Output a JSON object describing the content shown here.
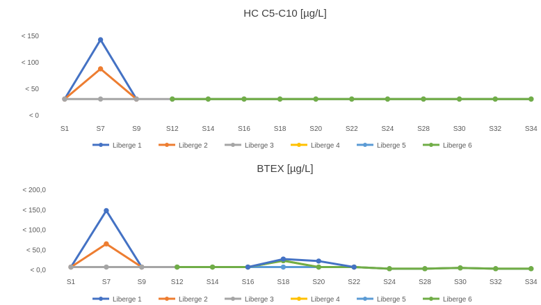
{
  "chart_data": [
    {
      "type": "line",
      "title": "HC C5-C10 [µg/L]",
      "xlabel": "",
      "ylabel": "",
      "categories": [
        "S1",
        "S7",
        "S9",
        "S12",
        "S14",
        "S16",
        "S18",
        "S20",
        "S22",
        "S24",
        "S28",
        "S30",
        "S32",
        "S34"
      ],
      "y_ticks": [
        "< 0",
        "< 50",
        "< 100",
        "< 150"
      ],
      "ylim": [
        0,
        150
      ],
      "grid": false,
      "legend_position": "bottom",
      "series": [
        {
          "name": "Liberge 1",
          "color": "#4472C4",
          "values": [
            30,
            142,
            30,
            null,
            null,
            null,
            null,
            null,
            null,
            null,
            null,
            null,
            null,
            null
          ]
        },
        {
          "name": "Liberge 2",
          "color": "#ED7D31",
          "values": [
            30,
            87,
            30,
            null,
            null,
            null,
            null,
            null,
            null,
            null,
            null,
            null,
            null,
            null
          ]
        },
        {
          "name": "Liberge 3",
          "color": "#A5A5A5",
          "values": [
            30,
            30,
            30,
            30,
            null,
            null,
            null,
            null,
            null,
            null,
            null,
            null,
            null,
            null
          ]
        },
        {
          "name": "Liberge 4",
          "color": "#FFC000",
          "values": [
            null,
            null,
            null,
            30,
            30,
            30,
            30,
            30,
            30,
            30,
            30,
            30,
            30,
            30
          ]
        },
        {
          "name": "Liberge 5",
          "color": "#5B9BD5",
          "values": [
            null,
            null,
            null,
            30,
            30,
            30,
            30,
            30,
            30,
            30,
            30,
            30,
            30,
            30
          ]
        },
        {
          "name": "Liberge 6",
          "color": "#70AD47",
          "values": [
            null,
            null,
            null,
            30,
            30,
            30,
            30,
            30,
            30,
            30,
            30,
            30,
            30,
            30
          ]
        }
      ]
    },
    {
      "type": "line",
      "title": "BTEX [µg/L]",
      "xlabel": "",
      "ylabel": "",
      "categories": [
        "S1",
        "S7",
        "S9",
        "S12",
        "S14",
        "S16",
        "S18",
        "S20",
        "S22",
        "S24",
        "S28",
        "S30",
        "S32",
        "S34"
      ],
      "y_ticks": [
        "< 0,0",
        "< 50,0",
        "< 100,0",
        "< 150,0",
        "< 200,0"
      ],
      "ylim": [
        0,
        200
      ],
      "grid": false,
      "legend_position": "bottom",
      "series": [
        {
          "name": "Liberge 1",
          "color": "#4472C4",
          "values": [
            6,
            147,
            6,
            null,
            null,
            null,
            null,
            null,
            null,
            null,
            null,
            null,
            null,
            null
          ]
        },
        {
          "name": "Liberge 2",
          "color": "#ED7D31",
          "values": [
            6,
            64,
            6,
            null,
            null,
            null,
            null,
            null,
            null,
            null,
            null,
            null,
            null,
            null
          ]
        },
        {
          "name": "Liberge 3",
          "color": "#A5A5A5",
          "values": [
            6,
            6,
            6,
            6,
            null,
            null,
            null,
            null,
            null,
            null,
            null,
            null,
            null,
            null
          ]
        },
        {
          "name": "Liberge 4",
          "color": "#FFC000",
          "values": [
            null,
            null,
            null,
            6,
            6,
            6,
            22,
            6,
            6,
            2,
            2,
            4,
            2,
            2
          ]
        },
        {
          "name": "Liberge 5",
          "color": "#5B9BD5",
          "values": [
            null,
            null,
            null,
            6,
            6,
            6,
            6,
            6,
            6,
            2,
            2,
            4,
            2,
            2
          ]
        },
        {
          "name": "Liberge 6",
          "color": "#70AD47",
          "values": [
            null,
            null,
            null,
            6,
            6,
            6,
            22,
            6,
            6,
            2,
            2,
            4,
            2,
            2
          ]
        },
        {
          "name": "Liberge 1",
          "color": "#4472C4",
          "values": [
            null,
            null,
            null,
            null,
            null,
            6,
            26,
            21,
            6,
            null,
            null,
            null,
            null,
            null
          ]
        }
      ]
    }
  ]
}
